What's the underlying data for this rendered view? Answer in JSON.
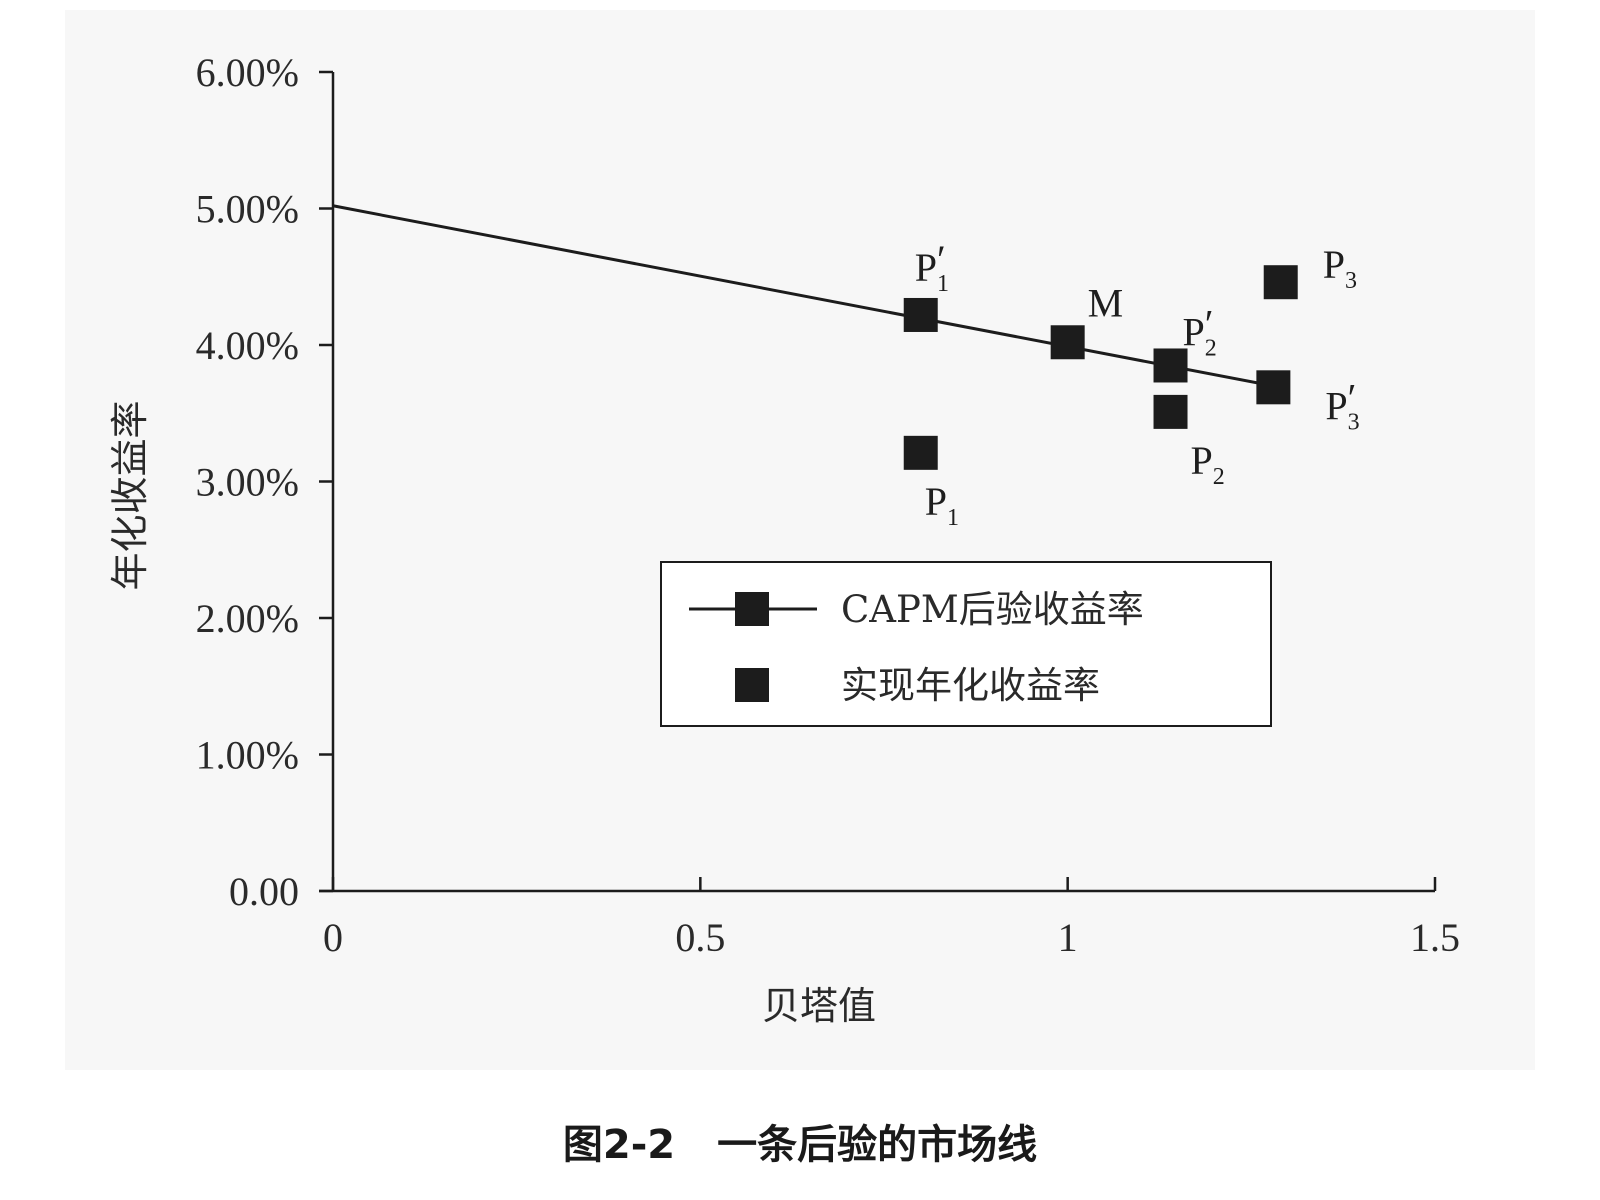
{
  "figure": {
    "caption_number": "图2-2",
    "caption_text": "一条后验的市场线"
  },
  "chart_data": {
    "type": "scatter",
    "xlabel": "贝塔值",
    "ylabel": "年化收益率",
    "xlim": [
      0,
      1.5
    ],
    "ylim": [
      0,
      0.06
    ],
    "x_ticks": [
      {
        "value": 0,
        "label": "0"
      },
      {
        "value": 0.5,
        "label": "0.5"
      },
      {
        "value": 1,
        "label": "1"
      },
      {
        "value": 1.5,
        "label": "1.5"
      }
    ],
    "y_ticks": [
      {
        "value": 0.0,
        "label": "0.00"
      },
      {
        "value": 0.01,
        "label": "1.00%"
      },
      {
        "value": 0.02,
        "label": "2.00%"
      },
      {
        "value": 0.03,
        "label": "3.00%"
      },
      {
        "value": 0.04,
        "label": "4.00%"
      },
      {
        "value": 0.05,
        "label": "5.00%"
      },
      {
        "value": 0.06,
        "label": "6.00%"
      }
    ],
    "grid": false,
    "legend_position": "bottom-right",
    "series": [
      {
        "name": "CAPM后验收益率",
        "style": "line-with-markers",
        "line": [
          [
            0,
            0.0502
          ],
          [
            1.28,
            0.037
          ]
        ],
        "points": [
          {
            "label": "P",
            "sub": "1",
            "prime": true,
            "x": 0.8,
            "y": 0.0422
          },
          {
            "label": "M",
            "sub": "",
            "prime": false,
            "x": 1.0,
            "y": 0.0402
          },
          {
            "label": "P",
            "sub": "2",
            "prime": true,
            "x": 1.14,
            "y": 0.0385
          },
          {
            "label": "P",
            "sub": "3",
            "prime": true,
            "x": 1.28,
            "y": 0.0369
          }
        ]
      },
      {
        "name": "实现年化收益率",
        "style": "markers",
        "points": [
          {
            "label": "P",
            "sub": "1",
            "prime": false,
            "x": 0.8,
            "y": 0.0321
          },
          {
            "label": "P",
            "sub": "2",
            "prime": false,
            "x": 1.14,
            "y": 0.0351
          },
          {
            "label": "P",
            "sub": "3",
            "prime": false,
            "x": 1.29,
            "y": 0.0446
          }
        ]
      }
    ],
    "marker_color": "#1c1c1c"
  }
}
